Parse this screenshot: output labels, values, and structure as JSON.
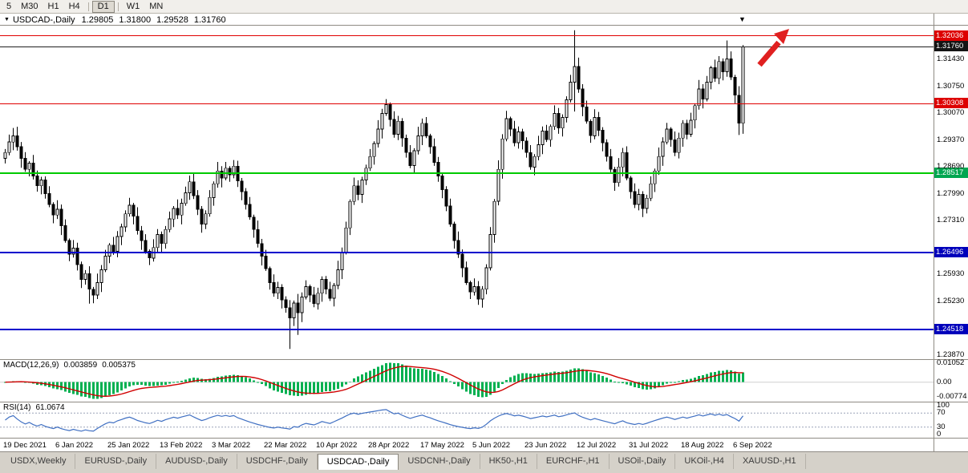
{
  "toolbar": {
    "timeframes": [
      "5",
      "M30",
      "H1",
      "H4",
      "D1",
      "W1",
      "MN"
    ],
    "active_timeframe": "D1"
  },
  "chart_header": {
    "marker_glyph": "▼",
    "open": "1.29805",
    "high": "1.31800",
    "low": "1.29528",
    "close": "1.31760"
  },
  "chart_data": {
    "type": "candlestick",
    "symbol": "USDCAD",
    "period": "Daily",
    "title": "USDCAD-,Daily",
    "ylim": [
      1.2376,
      1.3232
    ],
    "first_open": 1.289,
    "closes": [
      1.2905,
      1.2932,
      1.2948,
      1.292,
      1.289,
      1.2862,
      1.2878,
      1.2845,
      1.282,
      1.2835,
      1.28,
      1.2772,
      1.2745,
      1.276,
      1.2718,
      1.268,
      1.2645,
      1.266,
      1.2618,
      1.258,
      1.2595,
      1.2555,
      1.254,
      1.2572,
      1.2605,
      1.264,
      1.2668,
      1.2652,
      1.269,
      1.2715,
      1.2748,
      1.277,
      1.2742,
      1.2705,
      1.268,
      1.2652,
      1.2635,
      1.2662,
      1.2695,
      1.2672,
      1.2708,
      1.2735,
      1.2762,
      1.2745,
      1.2775,
      1.2802,
      1.283,
      1.2795,
      1.276,
      1.2722,
      1.2748,
      1.279,
      1.2825,
      1.2858,
      1.284,
      1.2865,
      1.2848,
      1.287,
      1.2832,
      1.2805,
      1.2772,
      1.274,
      1.2708,
      1.2672,
      1.264,
      1.2608,
      1.2572,
      1.2545,
      1.256,
      1.2528,
      1.2508,
      1.2482,
      1.252,
      1.2495,
      1.2535,
      1.2562,
      1.254,
      1.2518,
      1.2545,
      1.258,
      1.2555,
      1.2532,
      1.2565,
      1.2605,
      1.265,
      1.2712,
      1.278,
      1.282,
      1.2798,
      1.2835,
      1.2865,
      1.2895,
      1.2928,
      1.2965,
      1.3005,
      1.3028,
      1.299,
      1.2952,
      1.2985,
      1.2942,
      1.2905,
      1.2872,
      1.291,
      1.2948,
      1.298,
      1.2948,
      1.292,
      1.288,
      1.2845,
      1.281,
      1.2768,
      1.2722,
      1.268,
      1.2645,
      1.261,
      1.2572,
      1.2548,
      1.2562,
      1.253,
      1.2555,
      1.261,
      1.2695,
      1.278,
      1.2862,
      1.294,
      1.2992,
      1.2965,
      1.293,
      1.2958,
      1.2935,
      1.2905,
      1.2868,
      1.2895,
      1.2925,
      1.296,
      1.2938,
      1.2972,
      1.3005,
      1.2968,
      1.2995,
      1.304,
      1.3085,
      1.3125,
      1.3068,
      1.3022,
      1.2985,
      1.2948,
      1.2995,
      1.2962,
      1.293,
      1.2895,
      1.2862,
      1.2828,
      1.2868,
      1.2905,
      1.284,
      1.2805,
      1.2772,
      1.2798,
      1.2762,
      1.2788,
      1.2825,
      1.2858,
      1.2895,
      1.2932,
      1.2965,
      1.2938,
      1.2905,
      1.2942,
      1.298,
      1.2952,
      1.2988,
      1.3025,
      1.3068,
      1.3042,
      1.3085,
      1.3122,
      1.3095,
      1.3138,
      1.3112,
      1.3145,
      1.3098,
      1.3052,
      1.298,
      1.3176
    ],
    "wick_pattern_up": [
      0.0009,
      0.0019,
      0.0006,
      0.0023,
      0.0012,
      0.0016,
      0.0005,
      0.0021,
      0.0014,
      0.0008
    ],
    "wick_pattern_down": [
      0.0013,
      0.0007,
      0.0021,
      0.001,
      0.0024,
      0.0006,
      0.0018,
      0.0009,
      0.0015,
      0.0022
    ],
    "wick_overrides": {
      "2": {
        "high": 1.2968
      },
      "21": {
        "low": 1.2518
      },
      "46": {
        "high": 1.2846
      },
      "57": {
        "high": 1.2886
      },
      "71": {
        "low": 1.2402
      },
      "73": {
        "low": 1.2438
      },
      "95": {
        "high": 1.3042
      },
      "118": {
        "low": 1.2515
      },
      "125": {
        "high": 1.3012
      },
      "142": {
        "high": 1.3218,
        "low": 1.301
      },
      "180": {
        "high": 1.3192
      },
      "183": {
        "low": 1.295
      },
      "184": {
        "high": 1.318,
        "low": 1.2953
      }
    },
    "x_labels": [
      {
        "label": "19 Dec 2021",
        "i": 0
      },
      {
        "label": "6 Jan 2022",
        "i": 13
      },
      {
        "label": "25 Jan 2022",
        "i": 26
      },
      {
        "label": "13 Feb 2022",
        "i": 39
      },
      {
        "label": "3 Mar 2022",
        "i": 52
      },
      {
        "label": "22 Mar 2022",
        "i": 65
      },
      {
        "label": "10 Apr 2022",
        "i": 78
      },
      {
        "label": "28 Apr 2022",
        "i": 91
      },
      {
        "label": "17 May 2022",
        "i": 104
      },
      {
        "label": "5 Jun 2022",
        "i": 117
      },
      {
        "label": "23 Jun 2022",
        "i": 130
      },
      {
        "label": "12 Jul 2022",
        "i": 143
      },
      {
        "label": "31 Jul 2022",
        "i": 156
      },
      {
        "label": "18 Aug 2022",
        "i": 169
      },
      {
        "label": "6 Sep 2022",
        "i": 182
      }
    ],
    "y_ticks": [
      "1.31430",
      "1.30750",
      "1.30070",
      "1.29370",
      "1.28690",
      "1.27990",
      "1.27310",
      "1.25930",
      "1.25230",
      "1.23870"
    ],
    "hlines": [
      {
        "price": 1.32036,
        "label": "1.32036",
        "line": "#e00000",
        "tag": "#dd0000",
        "w": 1
      },
      {
        "price": 1.3176,
        "label": "1.31760",
        "line": "#202020",
        "tag": "#151515",
        "w": 1
      },
      {
        "price": 1.30308,
        "label": "1.30308",
        "line": "#e00000",
        "tag": "#dd0000",
        "w": 1
      },
      {
        "price": 1.28517,
        "label": "1.28517",
        "line": "#00ca00",
        "tag": "#00a650",
        "w": 2
      },
      {
        "price": 1.26496,
        "label": "1.26496",
        "line": "#0000cc",
        "tag": "#0000bb",
        "w": 2
      },
      {
        "price": 1.24518,
        "label": "1.24518",
        "line": "#0000cc",
        "tag": "#0000bb",
        "w": 2
      }
    ],
    "colors": {
      "up_fill": "#ffffff",
      "down_fill": "#000000",
      "stroke": "#000000",
      "arrow": "#e02020"
    },
    "macd": {
      "label": "MACD(12,26,9)",
      "value_main": "0.003859",
      "value_signal": "0.005375",
      "fast": 12,
      "slow": 26,
      "signal": 9,
      "hist_color": "#00b050",
      "signal_color": "#d00000",
      "axis_labels": [
        {
          "v": 0.01052,
          "t": "0.01052"
        },
        {
          "v": 0,
          "t": "0.00"
        },
        {
          "v": -0.00774,
          "t": "-0.00774"
        }
      ]
    },
    "rsi": {
      "label": "RSI(14)",
      "value": "61.0674",
      "period": 14,
      "line_color": "#3f6fc2",
      "levels": [
        70,
        30
      ],
      "axis_labels": [
        {
          "v": 100,
          "t": "100"
        },
        {
          "v": 70,
          "t": "70"
        },
        {
          "v": 30,
          "t": "30"
        },
        {
          "v": 0,
          "t": "0"
        }
      ]
    }
  },
  "tabs": {
    "items": [
      "USDX,Weekly",
      "EURUSD-,Daily",
      "AUDUSD-,Daily",
      "USDCHF-,Daily",
      "USDCAD-,Daily",
      "USDCNH-,Daily",
      "HK50-,H1",
      "EURCHF-,H1",
      "USOil-,Daily",
      "UKOil-,H4",
      "XAUUSD-,H1"
    ],
    "active": "USDCAD-,Daily"
  }
}
